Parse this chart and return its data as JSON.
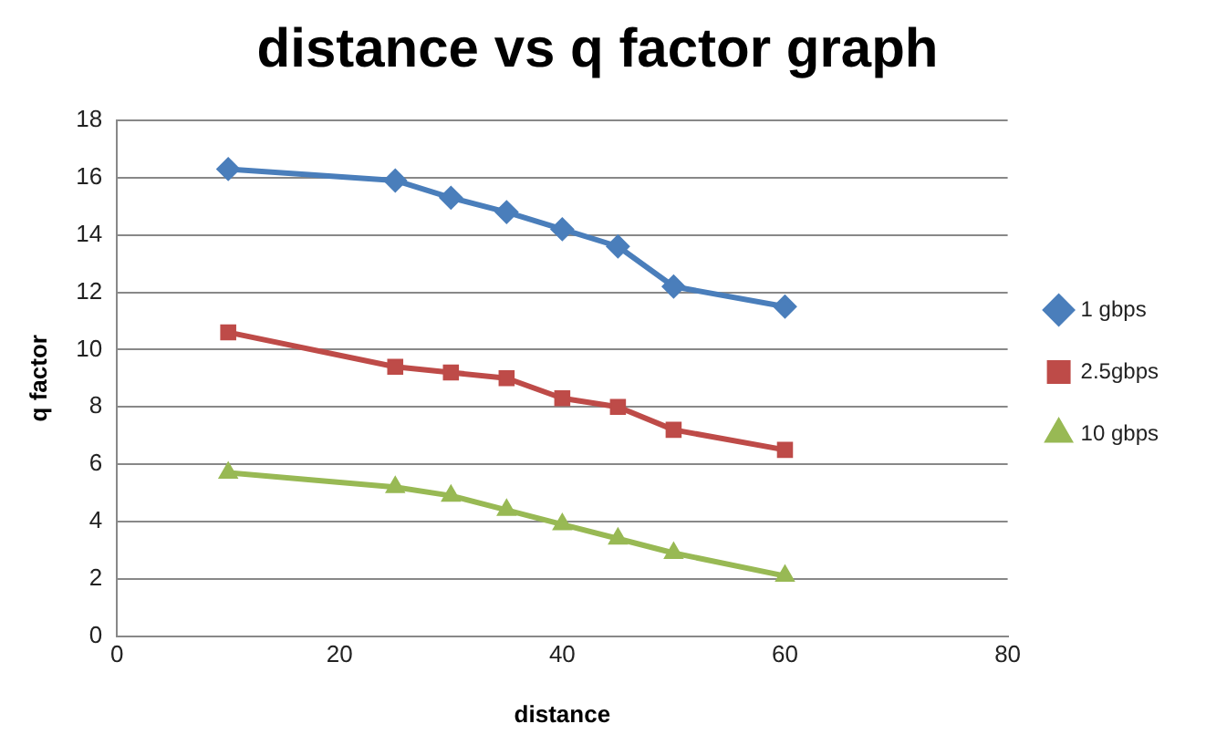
{
  "chart_data": {
    "type": "line",
    "title": "distance vs q factor graph",
    "xlabel": "distance",
    "ylabel": "q factor",
    "x": [
      10,
      25,
      30,
      35,
      40,
      45,
      50,
      60
    ],
    "series": [
      {
        "name": "1 gbps",
        "color": "#4a7ebb",
        "marker": "diamond",
        "values": [
          16.3,
          15.9,
          15.3,
          14.8,
          14.2,
          13.6,
          12.2,
          11.5
        ]
      },
      {
        "name": "2.5gbps",
        "color": "#be4b48",
        "marker": "square",
        "values": [
          10.6,
          9.4,
          9.2,
          9.0,
          8.3,
          8.0,
          7.2,
          6.5
        ]
      },
      {
        "name": "10 gbps",
        "color": "#98b954",
        "marker": "triangle",
        "values": [
          5.7,
          5.2,
          4.9,
          4.4,
          3.9,
          3.4,
          2.9,
          2.1
        ]
      }
    ],
    "xlim": [
      0,
      80
    ],
    "xticks": [
      0,
      20,
      40,
      60,
      80
    ],
    "ylim": [
      0,
      18
    ],
    "yticks": [
      0,
      2,
      4,
      6,
      8,
      10,
      12,
      14,
      16,
      18
    ],
    "grid": "y",
    "legend": "right",
    "line_style": "solid"
  }
}
